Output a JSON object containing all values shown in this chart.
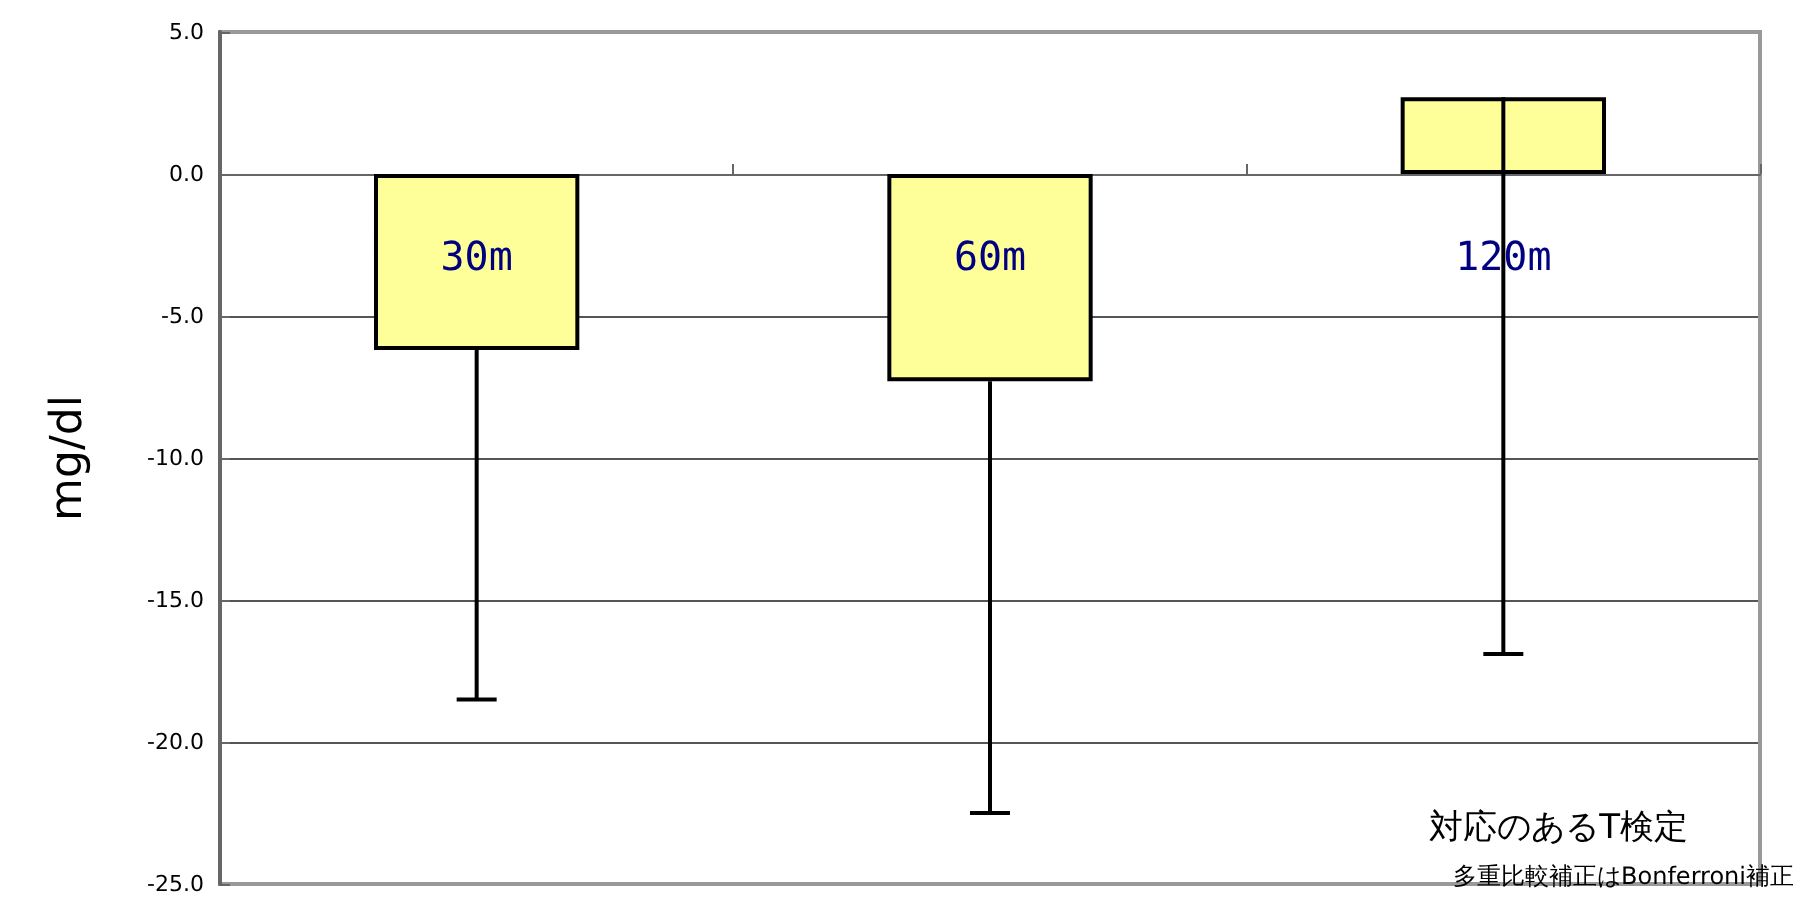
{
  "chart_data": {
    "type": "bar",
    "ylabel": "mg/dl",
    "categories": [
      "30m",
      "60m",
      "120m"
    ],
    "series": [
      {
        "color": "#ffff99",
        "values": [
          -6.2,
          -7.3,
          2.7
        ],
        "errors": [
          [
            -18.5,
            -6.2
          ],
          [
            -22.5,
            -7.3
          ],
          [
            -16.9,
            2.7
          ]
        ]
      }
    ],
    "ylim": [
      -25,
      5
    ],
    "yticks": [
      {
        "value": -25,
        "label": "-25.0"
      },
      {
        "value": -20,
        "label": "-20.0"
      },
      {
        "value": -15,
        "label": "-15.0"
      },
      {
        "value": -10,
        "label": "-10.0"
      },
      {
        "value": -5,
        "label": "-5.0"
      },
      {
        "value": 0,
        "label": "0.0"
      },
      {
        "value": 5,
        "label": "5.0"
      }
    ],
    "grid": "y",
    "tick_labels": "y",
    "annotations": [
      "対応のあるT検定",
      "多重比較補正はBonferroni補正"
    ]
  }
}
